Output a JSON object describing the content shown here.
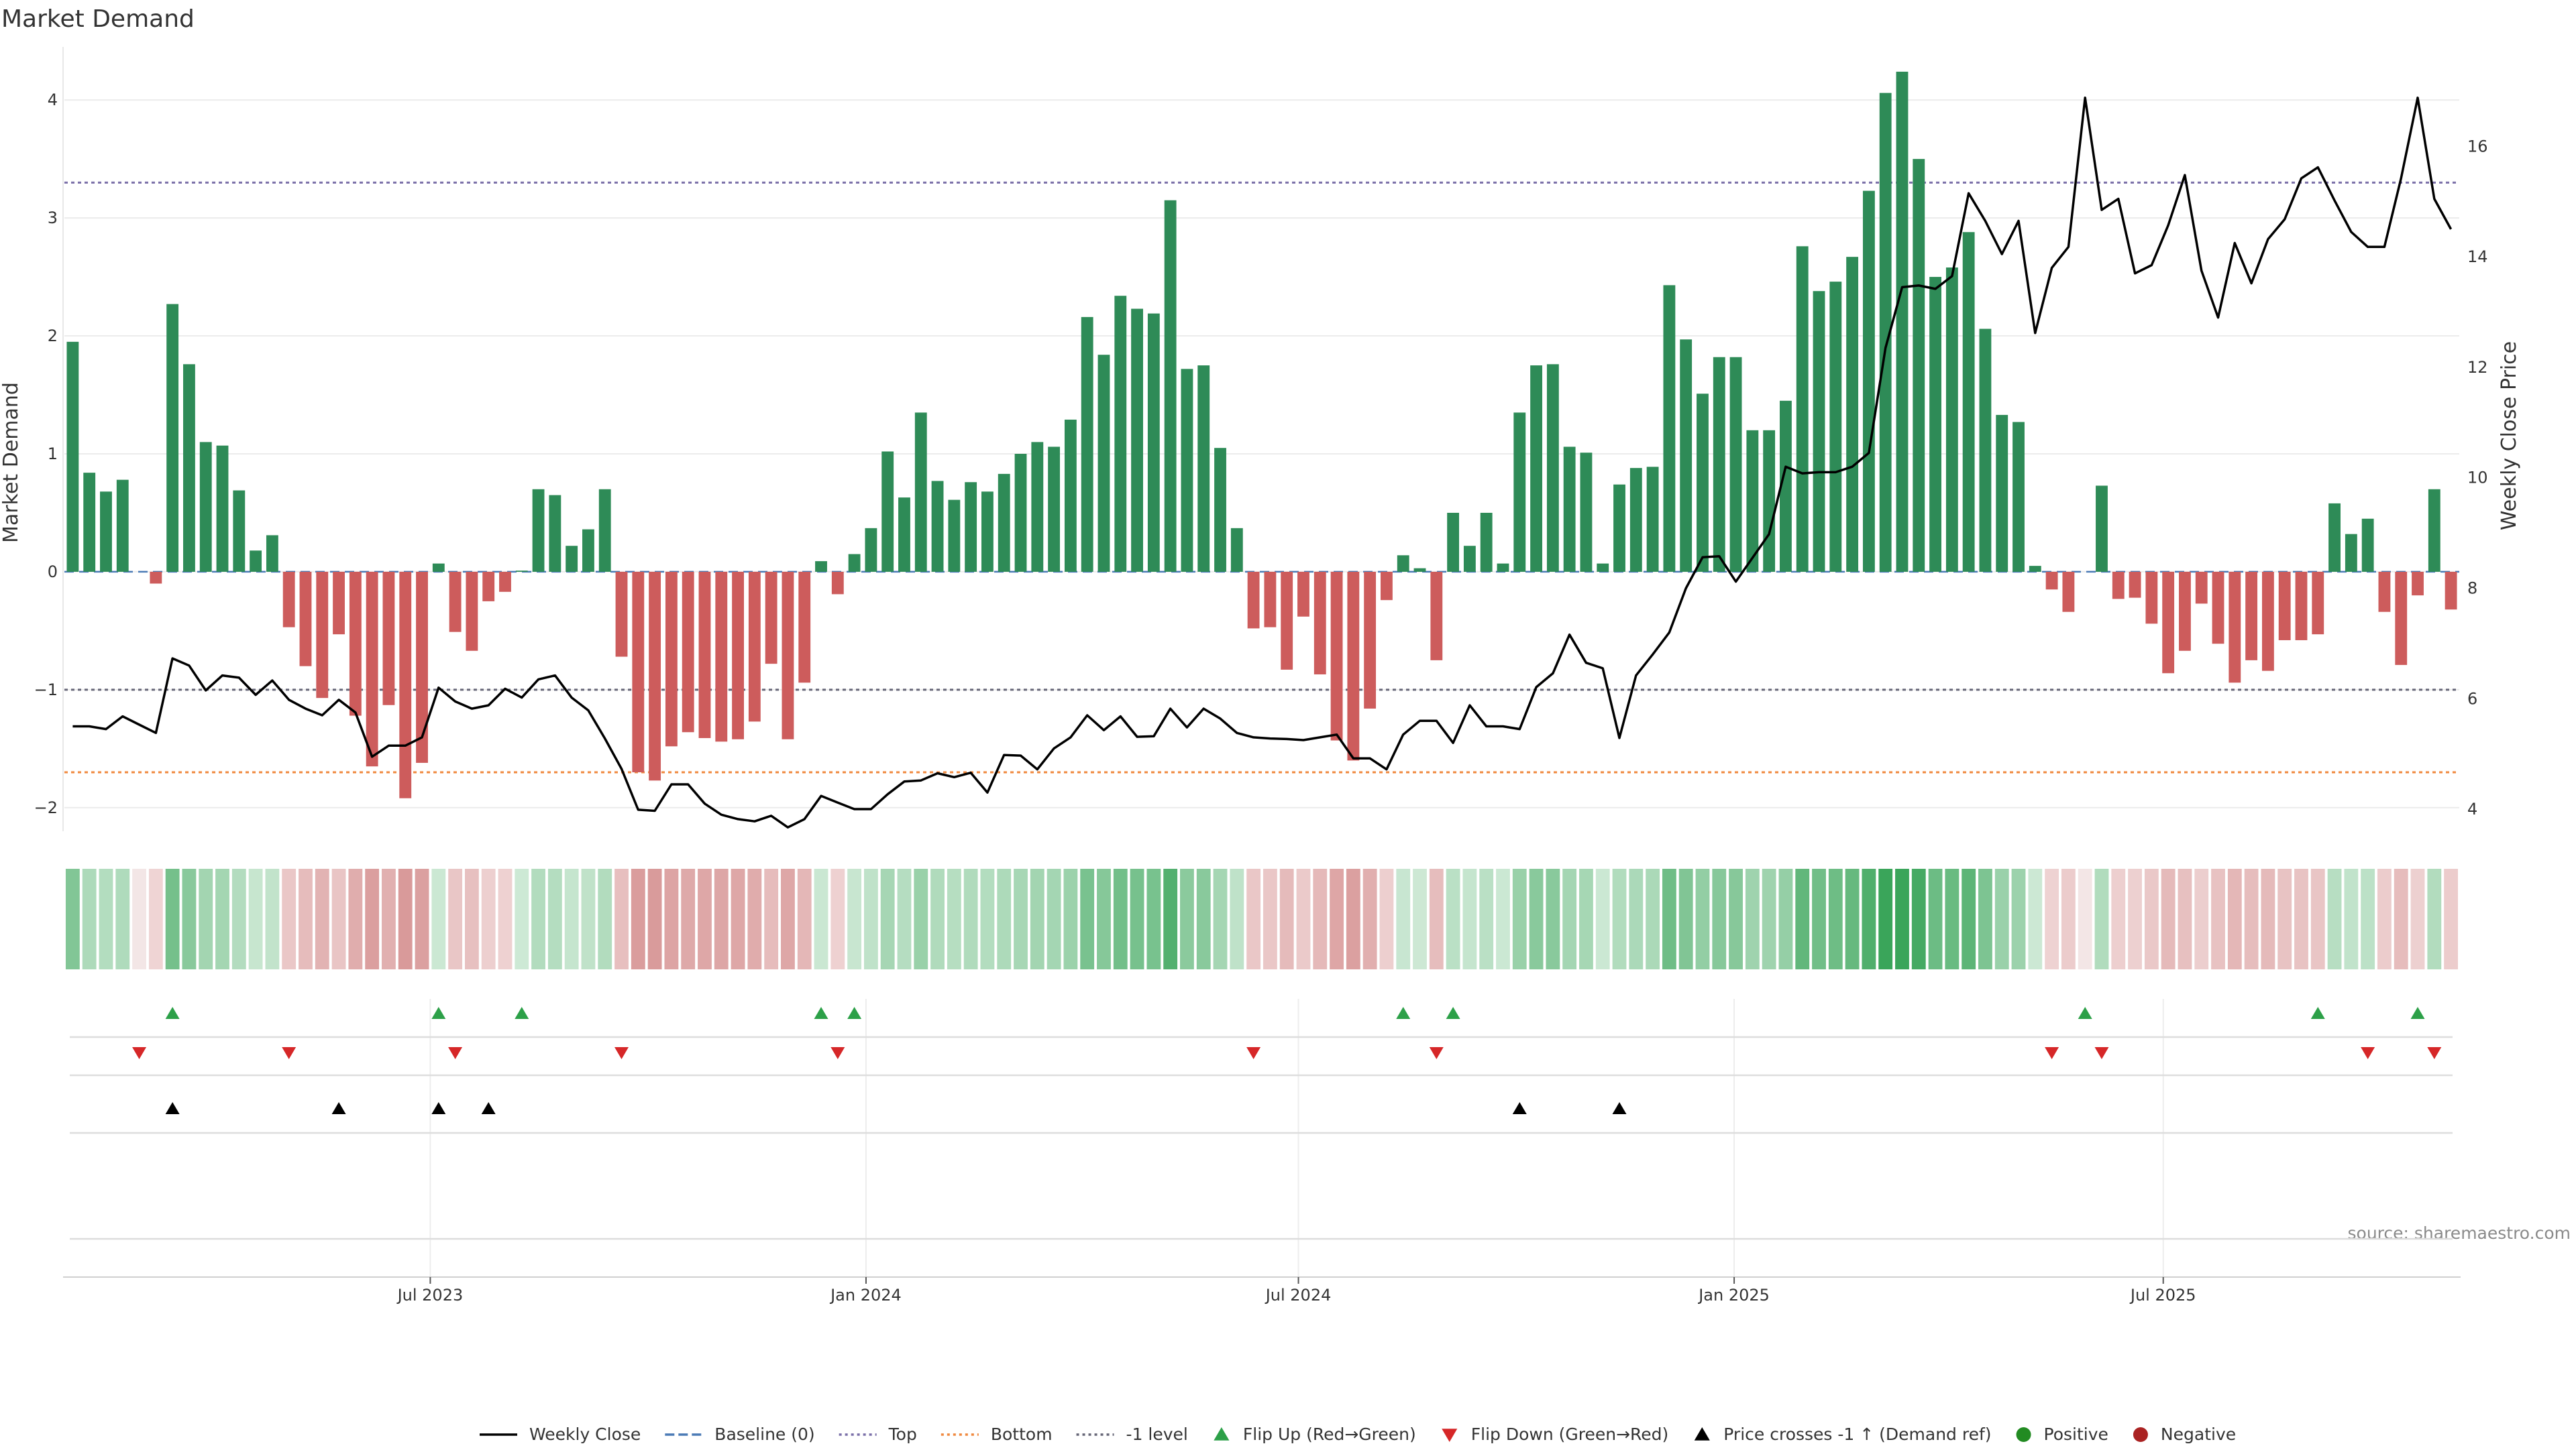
{
  "chart_data": {
    "type": "bar",
    "title": "Market Demand",
    "ylabel_left": "Market Demand",
    "ylabel_right": "Weekly Close Price",
    "source": "source: sharemaestro.com",
    "left_axis": {
      "range": [
        -2.2,
        4.45
      ],
      "ticks": [
        -2,
        -1,
        0,
        1,
        2,
        3,
        4
      ],
      "tick_labels": [
        "−2",
        "−1",
        "0",
        "1",
        "2",
        "3",
        "4"
      ]
    },
    "right_axis": {
      "range": [
        3.6,
        17.8
      ],
      "ticks": [
        4,
        6,
        8,
        10,
        12,
        14,
        16
      ],
      "tick_labels": [
        "4",
        "6",
        "8",
        "10",
        "12",
        "14",
        "16"
      ]
    },
    "x_ticks": [
      {
        "week": 21.5,
        "label": "Jul 2023"
      },
      {
        "week": 47.7,
        "label": "Jan 2024"
      },
      {
        "week": 73.7,
        "label": "Jul 2024"
      },
      {
        "week": 99.9,
        "label": "Jan 2025"
      },
      {
        "week": 125.7,
        "label": "Jul 2025"
      }
    ],
    "reference_lines": {
      "top": 3.3,
      "bottom": -1.7,
      "minus_one": -1,
      "baseline": 0
    },
    "weeks": 144,
    "market_demand": [
      1.95,
      0.84,
      0.68,
      0.78,
      0,
      -0.1,
      2.27,
      1.76,
      1.1,
      1.07,
      0.69,
      0.18,
      0.31,
      -0.47,
      -0.8,
      -1.07,
      -0.53,
      -1.22,
      -1.65,
      -1.13,
      -1.92,
      -1.62,
      0.07,
      -0.51,
      -0.67,
      -0.25,
      -0.17,
      0.01,
      0.7,
      0.65,
      0.22,
      0.36,
      0.7,
      -0.72,
      -1.7,
      -1.77,
      -1.48,
      -1.36,
      -1.41,
      -1.44,
      -1.42,
      -1.27,
      -0.78,
      -1.42,
      -0.94,
      0.09,
      -0.19,
      0.15,
      0.37,
      1.02,
      0.63,
      1.35,
      0.77,
      0.61,
      0.76,
      0.68,
      0.83,
      1.0,
      1.1,
      1.06,
      1.29,
      2.16,
      1.84,
      2.34,
      2.23,
      2.19,
      3.15,
      1.72,
      1.75,
      1.05,
      0.37,
      -0.48,
      -0.47,
      -0.83,
      -0.38,
      -0.87,
      -1.43,
      -1.6,
      -1.16,
      -0.24,
      0.14,
      0.03,
      -0.75,
      0.5,
      0.22,
      0.5,
      0.07,
      1.35,
      1.75,
      1.76,
      1.06,
      1.01,
      0.07,
      0.74,
      0.88,
      0.89,
      2.43,
      1.97,
      1.51,
      1.82,
      1.82,
      1.2,
      1.2,
      1.45,
      2.76,
      2.38,
      2.46,
      2.67,
      3.23,
      4.06,
      4.24,
      3.5,
      2.5,
      2.58,
      2.88,
      2.06,
      1.33,
      1.27,
      0.05,
      -0.15,
      -0.34,
      0,
      0.73,
      -0.23,
      -0.22,
      -0.44,
      -0.86,
      -0.67,
      -0.27,
      -0.61,
      -0.94,
      -0.75,
      -0.84,
      -0.58,
      -0.58,
      -0.53,
      0.58,
      0.32,
      0.45,
      -0.34,
      -0.79,
      -0.2,
      0.7,
      -0.32
    ],
    "weekly_close": [
      5.5,
      5.5,
      5.45,
      5.68,
      5.53,
      5.38,
      6.73,
      6.6,
      6.15,
      6.42,
      6.38,
      6.07,
      6.33,
      5.98,
      5.82,
      5.7,
      5.98,
      5.75,
      4.95,
      5.15,
      5.15,
      5.3,
      6.2,
      5.95,
      5.82,
      5.88,
      6.18,
      6.02,
      6.35,
      6.42,
      6.02,
      5.79,
      5.28,
      4.73,
      3.99,
      3.97,
      4.45,
      4.45,
      4.1,
      3.9,
      3.82,
      3.78,
      3.88,
      3.67,
      3.82,
      4.24,
      4.12,
      4.0,
      4.0,
      4.27,
      4.5,
      4.52,
      4.65,
      4.58,
      4.66,
      4.3,
      4.98,
      4.97,
      4.72,
      5.1,
      5.3,
      5.7,
      5.43,
      5.68,
      5.31,
      5.32,
      5.82,
      5.48,
      5.82,
      5.64,
      5.38,
      5.3,
      5.28,
      5.27,
      5.25,
      5.3,
      5.35,
      4.92,
      4.92,
      4.72,
      5.35,
      5.6,
      5.6,
      5.2,
      5.88,
      5.5,
      5.5,
      5.45,
      6.21,
      6.46,
      7.16,
      6.65,
      6.55,
      5.29,
      6.42,
      6.8,
      7.2,
      8.0,
      8.56,
      8.58,
      8.12,
      8.55,
      8.98,
      10.2,
      10.08,
      10.1,
      10.1,
      10.2,
      10.45,
      12.35,
      13.45,
      13.48,
      13.42,
      13.65,
      15.15,
      14.65,
      14.05,
      14.65,
      12.62,
      13.8,
      14.18,
      16.88,
      14.85,
      15.05,
      13.7,
      13.85,
      14.57,
      15.48,
      13.75,
      12.9,
      14.25,
      13.52,
      14.32,
      14.68,
      15.42,
      15.62,
      15.02,
      14.45,
      14.18,
      14.18,
      15.42,
      16.88,
      15.05,
      14.5
    ],
    "flip_up_weeks": [
      6,
      22,
      27,
      45,
      47,
      80,
      83,
      121,
      135,
      141
    ],
    "flip_down_weeks": [
      4,
      13,
      23,
      33,
      46,
      71,
      82,
      119,
      122,
      138,
      142
    ],
    "price_cross_weeks": [
      6,
      16,
      22,
      25,
      87,
      93
    ],
    "legend": [
      {
        "label": "Weekly Close",
        "kind": "line-solid",
        "color": "#000000"
      },
      {
        "label": "Baseline (0)",
        "kind": "line-dash",
        "color": "#4a7ab5"
      },
      {
        "label": "Top",
        "kind": "line-dot",
        "color": "#7a6fa8"
      },
      {
        "label": "Bottom",
        "kind": "line-dot",
        "color": "#f0883e"
      },
      {
        "label": "-1 level",
        "kind": "line-dot",
        "color": "#666677"
      },
      {
        "label": "Flip Up (Red→Green)",
        "kind": "tri-up",
        "color": "#2ca048"
      },
      {
        "label": "Flip Down (Green→Red)",
        "kind": "tri-down",
        "color": "#d62728"
      },
      {
        "label": "Price crosses -1 ↑ (Demand ref)",
        "kind": "tri-up",
        "color": "#000000"
      },
      {
        "label": "Positive",
        "kind": "dot",
        "color": "#228b22"
      },
      {
        "label": "Negative",
        "kind": "dot",
        "color": "#aa2222"
      }
    ],
    "colors": {
      "positive_bar": "#2e8b57",
      "negative_bar": "#cd5c5c",
      "price_line": "#000000",
      "top_line": "#7a6fa8",
      "bottom_line": "#f0883e",
      "minus_one_line": "#666677",
      "baseline": "#4a7ab5",
      "flip_up": "#2ca048",
      "flip_down": "#d62728",
      "price_cross": "#000000"
    }
  }
}
